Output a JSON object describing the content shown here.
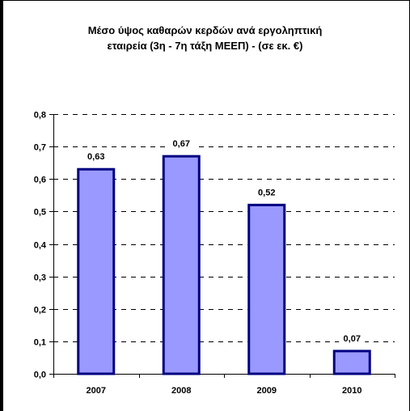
{
  "chart_data": {
    "type": "bar",
    "title_line1": "Μέσο ύψος καθαρών κερδών ανά εργοληπτική",
    "title_line2": "εταιρεία (3η - 7η τάξη ΜΕΕΠ) - (σε εκ. €)",
    "categories": [
      "2007",
      "2008",
      "2009",
      "2010"
    ],
    "values": [
      0.63,
      0.67,
      0.52,
      0.07
    ],
    "value_labels": [
      "0,63",
      "0,67",
      "0,52",
      "0,07"
    ],
    "ylim": [
      0,
      0.8
    ],
    "y_ticks": [
      "0,0",
      "0,1",
      "0,2",
      "0,3",
      "0,4",
      "0,5",
      "0,6",
      "0,7",
      "0,8"
    ],
    "grid": "dashed horizontal",
    "colors": {
      "bar_fill": "#9999FF",
      "bar_stroke": "#000080",
      "grid": "#000000"
    }
  }
}
